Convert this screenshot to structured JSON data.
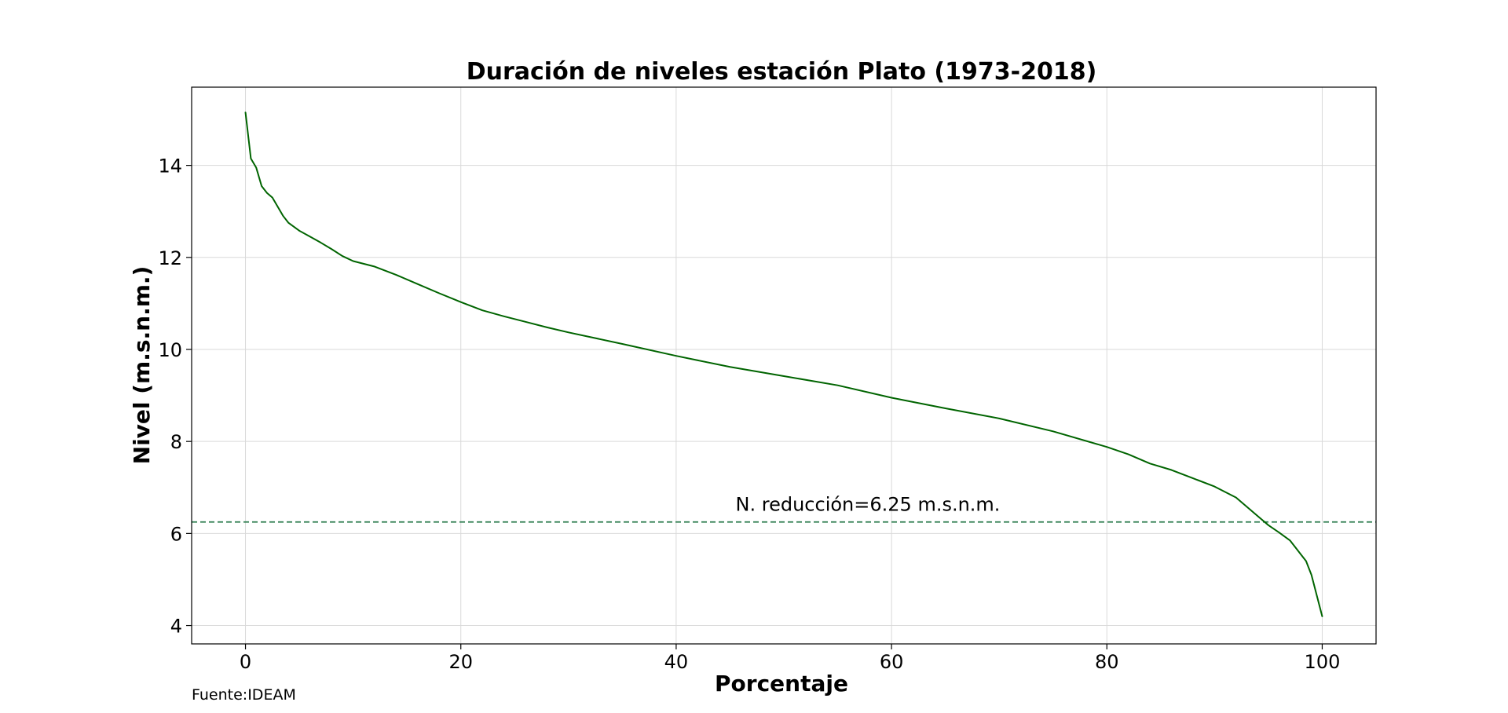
{
  "chart_data": {
    "type": "line",
    "title": "Duración de niveles estación Plato (1973-2018)",
    "xlabel": "Porcentaje",
    "ylabel": "Nivel (m.s.n.m.)",
    "xlim": [
      -5,
      105
    ],
    "ylim": [
      3.6,
      15.7
    ],
    "xticks": [
      0,
      20,
      40,
      60,
      80,
      100
    ],
    "yticks": [
      4,
      6,
      8,
      10,
      12,
      14
    ],
    "grid": true,
    "series": [
      {
        "color": "#006400",
        "x": [
          0,
          0.5,
          1,
          1.5,
          2,
          2.5,
          3,
          3.5,
          4,
          5,
          6,
          7,
          8,
          9,
          10,
          12,
          14,
          16,
          18,
          20,
          22,
          24,
          26,
          28,
          30,
          35,
          40,
          45,
          50,
          55,
          60,
          65,
          70,
          75,
          80,
          82,
          84,
          86,
          88,
          90,
          92,
          93,
          94,
          95,
          96,
          97,
          98,
          98.5,
          99,
          99.5,
          100
        ],
        "y": [
          15.15,
          14.15,
          13.95,
          13.55,
          13.4,
          13.3,
          13.1,
          12.9,
          12.75,
          12.58,
          12.45,
          12.32,
          12.18,
          12.03,
          11.92,
          11.8,
          11.62,
          11.42,
          11.22,
          11.03,
          10.85,
          10.72,
          10.6,
          10.48,
          10.37,
          10.12,
          9.86,
          9.62,
          9.42,
          9.22,
          8.95,
          8.72,
          8.5,
          8.22,
          7.88,
          7.72,
          7.52,
          7.38,
          7.2,
          7.02,
          6.78,
          6.58,
          6.38,
          6.18,
          6.02,
          5.85,
          5.55,
          5.4,
          5.1,
          4.65,
          4.2
        ]
      }
    ],
    "reference_line": {
      "y": 6.25,
      "style": "dashed",
      "color": "#2e7d4f",
      "label": "N. reducción=6.25 m.s.n.m."
    }
  },
  "footer": {
    "source": "Fuente:IDEAM"
  }
}
